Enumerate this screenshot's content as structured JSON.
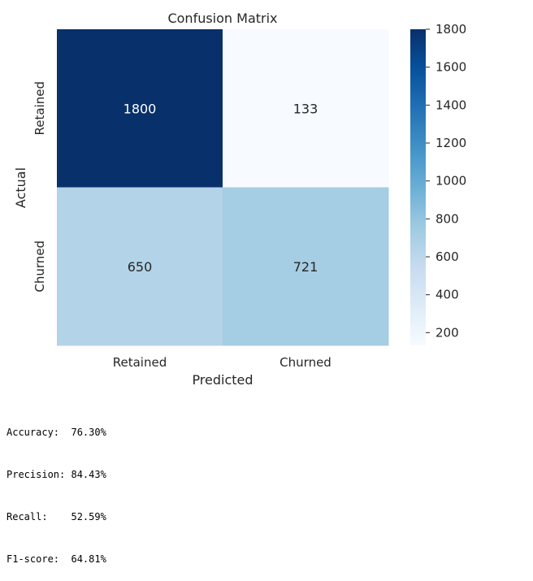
{
  "chart_data": {
    "type": "heatmap",
    "title": "Confusion Matrix",
    "xlabel": "Predicted",
    "ylabel": "Actual",
    "x_categories": [
      "Retained",
      "Churned"
    ],
    "y_categories": [
      "Retained",
      "Churned"
    ],
    "values": [
      [
        1800,
        133
      ],
      [
        650,
        721
      ]
    ],
    "colormap": "Blues",
    "color_range": [
      133,
      1800
    ],
    "colorbar_ticks": [
      200,
      400,
      600,
      800,
      1000,
      1200,
      1400,
      1600,
      1800
    ],
    "colorbar_tick_labels": [
      "200",
      "400",
      "600",
      "800",
      "1000",
      "1200",
      "1400",
      "1600",
      "1800"
    ]
  },
  "metrics": [
    "Accuracy:  76.30%",
    "Precision: 84.43%",
    "Recall:    52.59%",
    "F1-score:  64.81%"
  ]
}
